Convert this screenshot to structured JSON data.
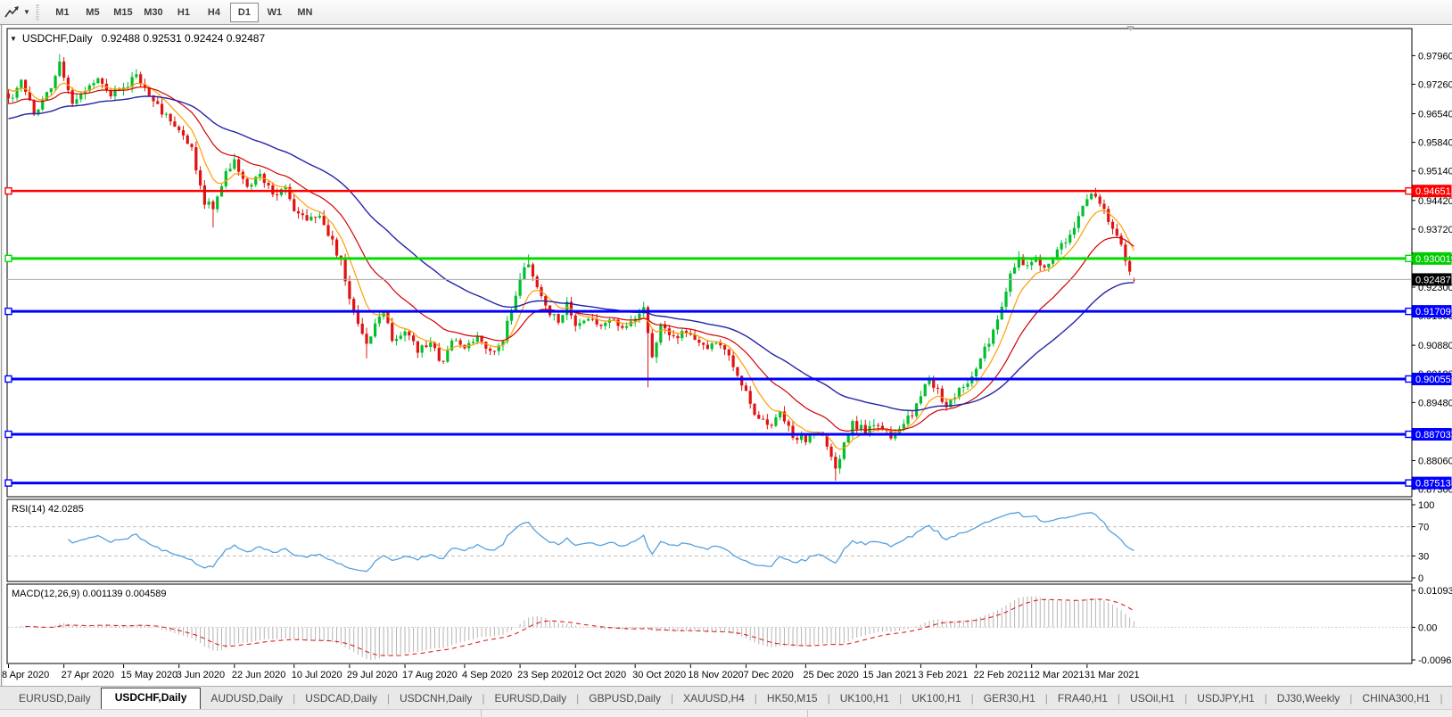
{
  "toolbar": {
    "cursor_tool_icon": "chart-cursor",
    "dropdown_icon": "chevron-down",
    "timeframes": [
      "M1",
      "M5",
      "M15",
      "M30",
      "H1",
      "H4",
      "D1",
      "W1",
      "MN"
    ],
    "active_timeframe": "D1"
  },
  "chart_header": {
    "menu_icon": "triangle-down",
    "symbol": "USDCHF,Daily",
    "ohlc_text": "0.92488 0.92531 0.92424 0.92487"
  },
  "indicators": {
    "rsi_label": "RSI(14) 42.0285",
    "macd_label": "MACD(12,26,9) 0.001139 0.004589"
  },
  "chart_data": {
    "type": "candlestick",
    "symbol": "USDCHF",
    "period": "Daily",
    "last_candle": {
      "open": 0.92488,
      "high": 0.92531,
      "low": 0.92424,
      "close": 0.92487
    },
    "price_axis_range": {
      "top": 0.98622,
      "bottom": 0.87177
    },
    "price_axis_ticks": [
      0.9796,
      0.9726,
      0.9654,
      0.9584,
      0.9514,
      0.9442,
      0.9372,
      0.9302,
      0.923,
      0.916,
      0.9088,
      0.9018,
      0.8948,
      0.8876,
      0.8806,
      0.8736
    ],
    "date_ticks": [
      "8 Apr 2020",
      "27 Apr 2020",
      "15 May 2020",
      "3 Jun 2020",
      "22 Jun 2020",
      "10 Jul 2020",
      "29 Jul 2020",
      "17 Aug 2020",
      "4 Sep 2020",
      "23 Sep 2020",
      "12 Oct 2020",
      "30 Oct 2020",
      "18 Nov 2020",
      "7 Dec 2020",
      "25 Dec 2020",
      "15 Jan 2021",
      "3 Feb 2021",
      "22 Feb 2021",
      "12 Mar 2021",
      "31 Mar 2021"
    ],
    "date_tick_indices": [
      0,
      13,
      27,
      40,
      53,
      67,
      80,
      93,
      107,
      120,
      133,
      147,
      160,
      173,
      187,
      201,
      214,
      227,
      240,
      253
    ],
    "candle_count": 265,
    "close_anchors": [
      [
        0,
        0.9685
      ],
      [
        3,
        0.973
      ],
      [
        6,
        0.9655
      ],
      [
        9,
        0.97
      ],
      [
        12,
        0.9775
      ],
      [
        15,
        0.968
      ],
      [
        18,
        0.9715
      ],
      [
        21,
        0.974
      ],
      [
        24,
        0.97
      ],
      [
        27,
        0.972
      ],
      [
        30,
        0.9745
      ],
      [
        33,
        0.97
      ],
      [
        36,
        0.966
      ],
      [
        38,
        0.963
      ],
      [
        40,
        0.9612
      ],
      [
        43,
        0.9565
      ],
      [
        46,
        0.944
      ],
      [
        48,
        0.9425
      ],
      [
        51,
        0.951
      ],
      [
        53,
        0.9535
      ],
      [
        56,
        0.948
      ],
      [
        59,
        0.95
      ],
      [
        62,
        0.946
      ],
      [
        65,
        0.947
      ],
      [
        67,
        0.942
      ],
      [
        70,
        0.9395
      ],
      [
        73,
        0.9405
      ],
      [
        76,
        0.934
      ],
      [
        78,
        0.929
      ],
      [
        80,
        0.921
      ],
      [
        82,
        0.9135
      ],
      [
        84,
        0.909
      ],
      [
        86,
        0.9135
      ],
      [
        88,
        0.918
      ],
      [
        90,
        0.9105
      ],
      [
        93,
        0.9125
      ],
      [
        96,
        0.9075
      ],
      [
        99,
        0.909
      ],
      [
        102,
        0.904
      ],
      [
        104,
        0.91
      ],
      [
        107,
        0.9085
      ],
      [
        110,
        0.911
      ],
      [
        113,
        0.907
      ],
      [
        116,
        0.91
      ],
      [
        118,
        0.918
      ],
      [
        120,
        0.925
      ],
      [
        122,
        0.929
      ],
      [
        124,
        0.923
      ],
      [
        126,
        0.918
      ],
      [
        129,
        0.915
      ],
      [
        131,
        0.919
      ],
      [
        133,
        0.9135
      ],
      [
        136,
        0.915
      ],
      [
        139,
        0.913
      ],
      [
        141,
        0.9155
      ],
      [
        144,
        0.913
      ],
      [
        147,
        0.9155
      ],
      [
        149,
        0.918
      ],
      [
        151,
        0.906
      ],
      [
        153,
        0.9135
      ],
      [
        156,
        0.9105
      ],
      [
        158,
        0.912
      ],
      [
        160,
        0.9105
      ],
      [
        163,
        0.9085
      ],
      [
        166,
        0.909
      ],
      [
        169,
        0.906
      ],
      [
        171,
        0.902
      ],
      [
        173,
        0.897
      ],
      [
        176,
        0.8905
      ],
      [
        179,
        0.889
      ],
      [
        181,
        0.892
      ],
      [
        184,
        0.887
      ],
      [
        187,
        0.8855
      ],
      [
        190,
        0.888
      ],
      [
        192,
        0.884
      ],
      [
        194,
        0.879
      ],
      [
        196,
        0.8845
      ],
      [
        198,
        0.8895
      ],
      [
        201,
        0.888
      ],
      [
        204,
        0.89
      ],
      [
        207,
        0.8865
      ],
      [
        210,
        0.8895
      ],
      [
        212,
        0.892
      ],
      [
        214,
        0.896
      ],
      [
        216,
        0.901
      ],
      [
        218,
        0.8975
      ],
      [
        220,
        0.8935
      ],
      [
        222,
        0.8965
      ],
      [
        224,
        0.8985
      ],
      [
        227,
        0.903
      ],
      [
        229,
        0.908
      ],
      [
        231,
        0.912
      ],
      [
        233,
        0.919
      ],
      [
        235,
        0.926
      ],
      [
        237,
        0.93
      ],
      [
        239,
        0.9285
      ],
      [
        241,
        0.9305
      ],
      [
        243,
        0.927
      ],
      [
        245,
        0.93
      ],
      [
        247,
        0.933
      ],
      [
        249,
        0.9365
      ],
      [
        251,
        0.94
      ],
      [
        253,
        0.944
      ],
      [
        255,
        0.946
      ],
      [
        257,
        0.9415
      ],
      [
        259,
        0.938
      ],
      [
        261,
        0.933
      ],
      [
        263,
        0.927
      ],
      [
        264,
        0.9249
      ]
    ],
    "key_extremes": [
      {
        "i": 12,
        "high": 0.98
      },
      {
        "i": 48,
        "low": 0.9376
      },
      {
        "i": 84,
        "low": 0.9056
      },
      {
        "i": 122,
        "high": 0.931
      },
      {
        "i": 150,
        "low": 0.8985
      },
      {
        "i": 194,
        "low": 0.8757
      },
      {
        "i": 255,
        "high": 0.9473
      }
    ],
    "candle_colors": {
      "up": "#00bf2c",
      "down": "#e01212"
    },
    "moving_averages": [
      {
        "name": "fast",
        "period": 8,
        "color": "#ff9d00",
        "seed": 0.972
      },
      {
        "name": "mid",
        "period": 21,
        "color": "#d40000",
        "seed": 0.9677
      },
      {
        "name": "slow",
        "period": 50,
        "color": "#2323a8",
        "seed": 0.964
      }
    ],
    "horizontal_lines": [
      {
        "value": 0.94651,
        "label": "0.94651",
        "color": "#ff0000",
        "width": 2.5
      },
      {
        "value": 0.93001,
        "label": "0.93001",
        "color": "#00dd00",
        "width": 3
      },
      {
        "value": 0.91709,
        "label": "0.91709",
        "color": "#0000ff",
        "width": 3
      },
      {
        "value": 0.90055,
        "label": "0.90055",
        "color": "#0000ff",
        "width": 3
      },
      {
        "value": 0.88703,
        "label": "0.88703",
        "color": "#0000ff",
        "width": 3
      },
      {
        "value": 0.87513,
        "label": "0.87513",
        "color": "#0000ff",
        "width": 3
      }
    ],
    "current_price": {
      "value": 0.92487,
      "label": "0.92487",
      "line_color": "#a8a8a8",
      "tag_bg": "#000000"
    },
    "rsi": {
      "period": 14,
      "current": 42.0285,
      "levels": [
        70,
        30
      ],
      "scale_labels": [
        100,
        70,
        30,
        0
      ],
      "color": "#56a0dd"
    },
    "macd": {
      "fast": 12,
      "slow": 26,
      "signal_period": 9,
      "main": 0.001139,
      "signal": 0.004589,
      "scale_top": 0.010933,
      "scale_zero_label": "0.00",
      "scale_bottom": -0.009653,
      "scale_top_label": "0.010933",
      "scale_bottom_label": "-0.009653",
      "histogram_color": "#b4b4b4",
      "signal_color": "#e02020"
    }
  },
  "bottom_tabs": {
    "tabs": [
      "EURUSD,Daily",
      "USDCHF,Daily",
      "AUDUSD,Daily",
      "USDCAD,Daily",
      "USDCNH,Daily",
      "EURUSD,Daily",
      "GBPUSD,Daily",
      "XAUUSD,H4",
      "HK50,M15",
      "UK100,H1",
      "UK100,H1",
      "GER30,H1",
      "FRA40,H1",
      "USOil,H1",
      "USDJPY,H1",
      "DJ30,Weekly",
      "CHINA300,H1",
      "U"
    ],
    "active_tab_index": 1,
    "scroll_left_icon": "◄",
    "scroll_right_icon": "►"
  }
}
